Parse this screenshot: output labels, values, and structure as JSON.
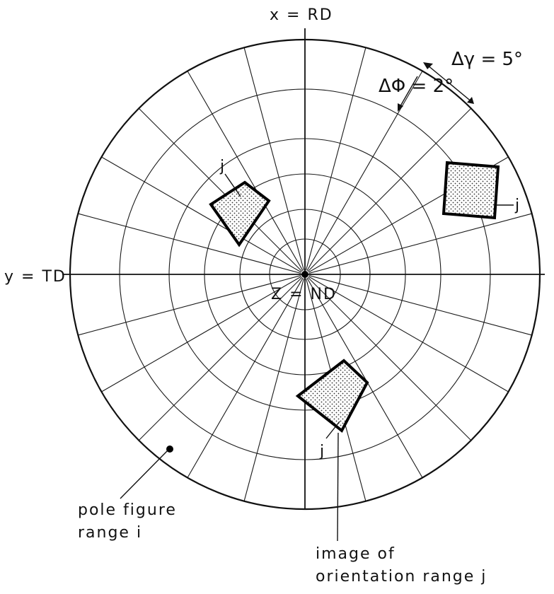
{
  "labels": {
    "x_axis": "x = RD",
    "y_axis": "y = TD",
    "z_axis": "Z = ND",
    "delta_gamma": "Δγ = 5°",
    "delta_phi": "ΔΦ = 2°",
    "pole_line1": "pole figure",
    "pole_line2": "range i",
    "image_line1": "image of",
    "image_line2": "orientation range j",
    "j_label": "j"
  },
  "grid": {
    "azimuthal_step_deg": 15,
    "radial_rings": 6
  }
}
